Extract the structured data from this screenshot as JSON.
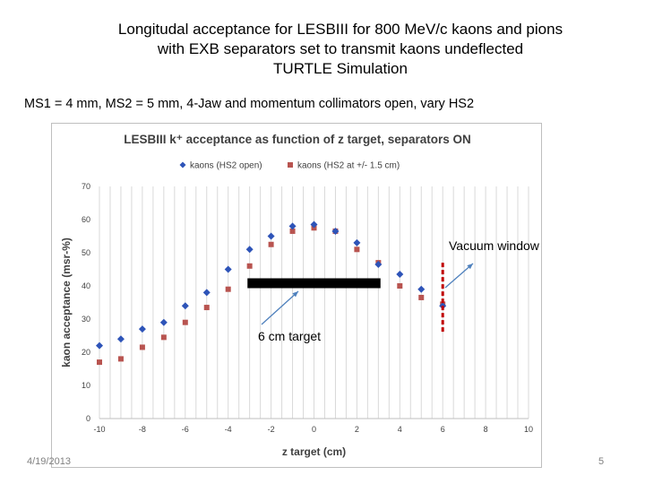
{
  "slide": {
    "title_lines": [
      "Longitudal acceptance for LESBIII for 800 MeV/c kaons and pions",
      "with EXB separators set to transmit kaons undeflected",
      "TURTLE Simulation"
    ],
    "subtitle": "MS1 = 4 mm, MS2 = 5 mm, 4-Jaw and momentum collimators open, vary HS2",
    "date": "4/19/2013",
    "page_number": "5"
  },
  "annotations": {
    "vacuum_window": "Vacuum window",
    "target": "6 cm target"
  },
  "colors": {
    "series1": "#2E54B8",
    "series2": "#B85450",
    "target_bar": "#000000",
    "vacuum_window_line": "#C00000",
    "arrow": "#4F81BD",
    "grid": "#D9D9D9"
  },
  "chart_data": {
    "type": "scatter",
    "title": "LESBIII k⁺ acceptance as function of z target, separators ON",
    "xlabel": "z target (cm)",
    "ylabel": "kaon acceptance (msr-%)",
    "xlim": [
      -10,
      10
    ],
    "ylim": [
      0,
      70
    ],
    "xticks": [
      -10,
      -8,
      -6,
      -4,
      -2,
      0,
      2,
      4,
      6,
      8,
      10
    ],
    "yticks": [
      0,
      10,
      20,
      30,
      40,
      50,
      60,
      70
    ],
    "grid": "vertical",
    "legend_position": "top",
    "series": [
      {
        "name": "kaons (HS2 open)",
        "marker": "diamond",
        "x": [
          -10,
          -9,
          -8,
          -7,
          -6,
          -5,
          -4,
          -3,
          -2,
          -1,
          0,
          1,
          2,
          3,
          4,
          5,
          6
        ],
        "y": [
          22,
          24,
          27,
          29,
          34,
          38,
          45,
          51,
          55,
          58,
          58.5,
          56.5,
          53,
          46.5,
          43.5,
          39,
          34
        ]
      },
      {
        "name": "kaons (HS2 at +/- 1.5 cm)",
        "marker": "square",
        "x": [
          -10,
          -9,
          -8,
          -7,
          -6,
          -5,
          -4,
          -3,
          -2,
          -1,
          0,
          1,
          2,
          3,
          4,
          5,
          6
        ],
        "y": [
          17,
          18,
          21.5,
          24.5,
          29,
          33.5,
          39,
          46,
          52.5,
          56.5,
          57.5,
          56.5,
          51,
          47,
          40,
          36.5,
          34.5
        ]
      }
    ],
    "target_region": [
      -3,
      3
    ],
    "vacuum_window_z": 6
  }
}
